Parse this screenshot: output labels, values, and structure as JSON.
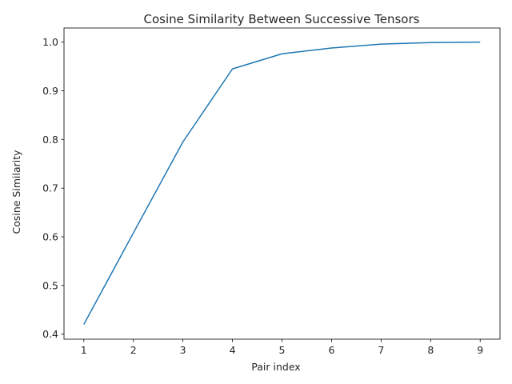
{
  "chart_data": {
    "type": "line",
    "title": "Cosine Similarity Between Successive Tensors",
    "xlabel": "Pair index",
    "ylabel": "Cosine Similarity",
    "x": [
      1,
      2,
      3,
      4,
      5,
      6,
      7,
      8,
      9
    ],
    "series": [
      {
        "values": [
          0.42,
          0.608,
          0.795,
          0.945,
          0.976,
          0.988,
          0.996,
          0.999,
          1.0
        ],
        "color": "#1f77b4"
      }
    ],
    "xlim": [
      0.6,
      9.4
    ],
    "ylim": [
      0.3897,
      1.029
    ],
    "xticks": [
      "1",
      "2",
      "3",
      "4",
      "5",
      "6",
      "7",
      "8",
      "9"
    ],
    "yticks": [
      "0.4",
      "0.5",
      "0.6",
      "0.7",
      "0.8",
      "0.9",
      "1.0"
    ],
    "grid": false,
    "legend": "none"
  }
}
